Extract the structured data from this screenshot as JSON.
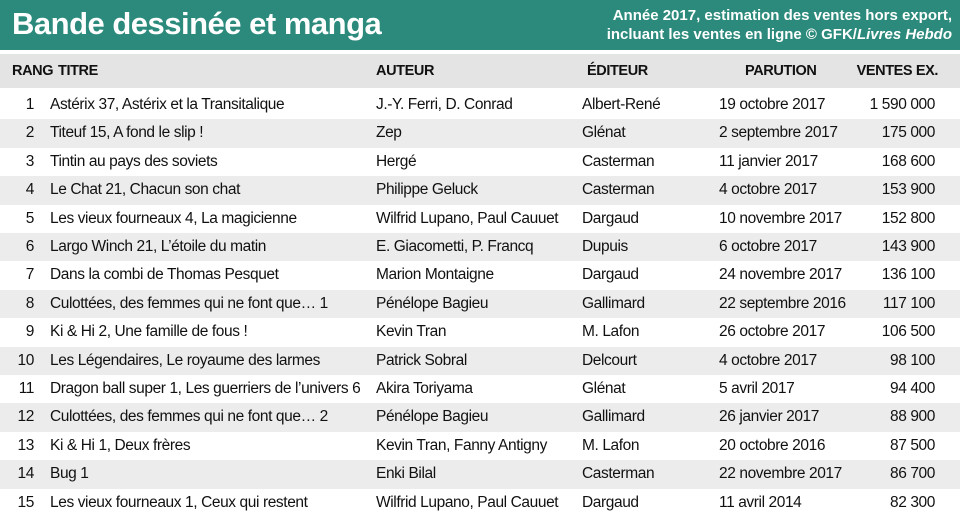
{
  "header": {
    "title": "Bande dessinée et manga",
    "subtitle_lines": [
      "Année 2017, estimation des ventes hors export,",
      "incluant les ventes en ligne © GFK/"
    ],
    "subtitle_source": "Livres Hebdo"
  },
  "table": {
    "columns": [
      "RANG",
      "TITRE",
      "AUTEUR",
      "ÉDITEUR",
      "PARUTION",
      "VENTES EX."
    ],
    "rows": [
      [
        "1",
        "Astérix 37, Astérix et la Transitalique",
        "J.-Y. Ferri, D. Conrad",
        "Albert-René",
        "19 octobre 2017",
        "1 590 000"
      ],
      [
        "2",
        "Titeuf 15, A fond le slip !",
        "Zep",
        "Glénat",
        "2 septembre 2017",
        "175 000"
      ],
      [
        "3",
        "Tintin au pays des soviets",
        "Hergé",
        "Casterman",
        "11 janvier 2017",
        "168 600"
      ],
      [
        "4",
        "Le Chat 21, Chacun son chat",
        "Philippe Geluck",
        "Casterman",
        "4 octobre 2017",
        "153 900"
      ],
      [
        "5",
        "Les vieux fourneaux 4, La magicienne",
        "Wilfrid Lupano, Paul Cauuet",
        "Dargaud",
        "10 novembre 2017",
        "152 800"
      ],
      [
        "6",
        "Largo Winch 21, L’étoile du matin",
        "E. Giacometti, P. Francq",
        "Dupuis",
        "6 octobre 2017",
        "143 900"
      ],
      [
        "7",
        "Dans la combi de Thomas Pesquet",
        "Marion Montaigne",
        "Dargaud",
        "24 novembre 2017",
        "136 100"
      ],
      [
        "8",
        "Culottées, des femmes qui ne font que… 1",
        "Pénélope Bagieu",
        "Gallimard",
        "22 septembre 2016",
        "117 100"
      ],
      [
        "9",
        "Ki & Hi 2, Une famille de fous !",
        "Kevin Tran",
        "M. Lafon",
        "26 octobre 2017",
        "106 500"
      ],
      [
        "10",
        "Les Légendaires, Le royaume des larmes",
        "Patrick Sobral",
        "Delcourt",
        "4 octobre 2017",
        "98 100"
      ],
      [
        "11",
        "Dragon ball super 1, Les guerriers de l’univers 6",
        "Akira Toriyama",
        "Glénat",
        "5 avril 2017",
        "94 400"
      ],
      [
        "12",
        "Culottées, des femmes qui ne font que… 2",
        "Pénélope Bagieu",
        "Gallimard",
        "26 janvier 2017",
        "88 900"
      ],
      [
        "13",
        "Ki & Hi 1, Deux frères",
        "Kevin Tran, Fanny Antigny",
        "M. Lafon",
        "20 octobre 2016",
        "87 500"
      ],
      [
        "14",
        "Bug 1",
        "Enki Bilal",
        "Casterman",
        "22 novembre 2017",
        "86 700"
      ],
      [
        "15",
        "Les vieux fourneaux 1, Ceux qui restent",
        "Wilfrid Lupano, Paul Cauuet",
        "Dargaud",
        "11 avril 2014",
        "82 300"
      ]
    ]
  }
}
